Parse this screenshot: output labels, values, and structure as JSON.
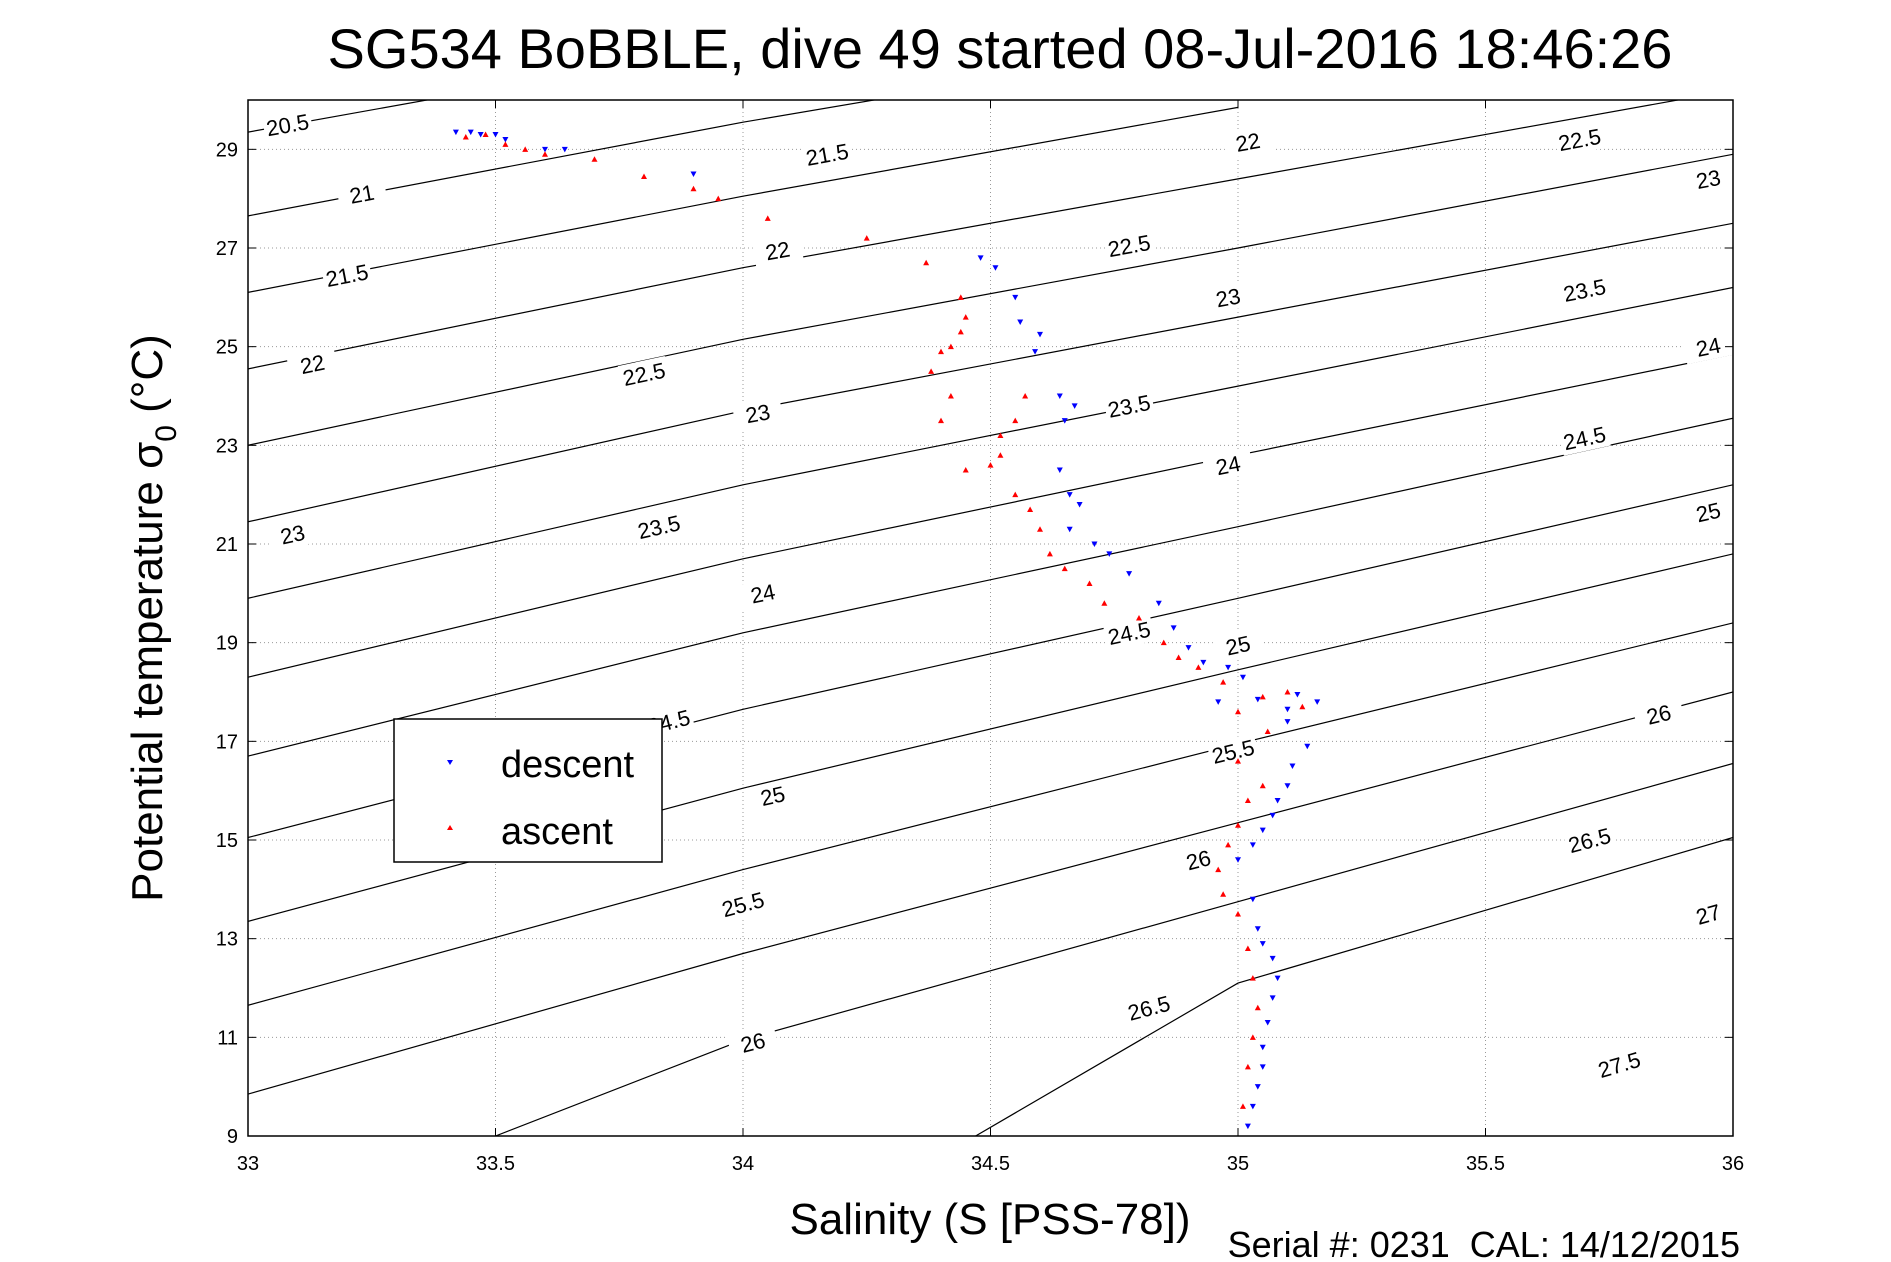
{
  "chart_data": {
    "type": "scatter",
    "title": "SG534 BoBBLE, dive 49 started 08-Jul-2016 18:46:26",
    "xlabel": "Salinity (S [PSS-78])",
    "ylabel_main": "Potential temperature σ",
    "ylabel_sub": "0",
    "ylabel_unit": " (°C)",
    "xlim": [
      33,
      36
    ],
    "ylim": [
      9,
      30
    ],
    "grid": true,
    "x_ticks": [
      33,
      33.5,
      34,
      34.5,
      35,
      35.5,
      36
    ],
    "x_tick_labels": [
      "33",
      "33.5",
      "34",
      "34.5",
      "35",
      "35.5",
      "36"
    ],
    "y_ticks": [
      9,
      11,
      13,
      15,
      17,
      19,
      21,
      23,
      25,
      27,
      29
    ],
    "y_tick_labels": [
      "9",
      "11",
      "13",
      "15",
      "17",
      "19",
      "21",
      "23",
      "25",
      "27",
      "29"
    ],
    "legend": {
      "placement": "left-middle",
      "entries": [
        {
          "name": "descent",
          "color": "#0000ff",
          "marker": "triangle-down"
        },
        {
          "name": "ascent",
          "color": "#ff0000",
          "marker": "triangle-up"
        }
      ]
    },
    "footer": "Serial #: 0231  CAL: 14/12/2015",
    "density_contours": [
      {
        "level": 20.5,
        "label": "20.5",
        "points": [
          [
            33.0,
            29.35
          ],
          [
            34.0,
            31.15
          ]
        ],
        "labels_at": [
          [
            33.08,
            29.5
          ]
        ]
      },
      {
        "level": 21,
        "label": "21",
        "points": [
          [
            33.0,
            27.65
          ],
          [
            34.0,
            29.55
          ],
          [
            35.0,
            31.25
          ]
        ],
        "labels_at": [
          [
            33.23,
            28.1
          ]
        ]
      },
      {
        "level": 21.5,
        "label": "21.5",
        "points": [
          [
            33.0,
            26.1
          ],
          [
            34.0,
            28.05
          ],
          [
            35.0,
            29.85
          ]
        ],
        "labels_at": [
          [
            33.2,
            26.45
          ],
          [
            34.17,
            28.9
          ]
        ]
      },
      {
        "level": 22,
        "label": "22",
        "points": [
          [
            33.0,
            24.55
          ],
          [
            34.0,
            26.6
          ],
          [
            35.0,
            28.4
          ],
          [
            36.0,
            30.2
          ]
        ],
        "labels_at": [
          [
            33.13,
            24.65
          ],
          [
            34.07,
            26.95
          ],
          [
            35.02,
            29.15
          ]
        ]
      },
      {
        "level": 22.5,
        "label": "22.5",
        "points": [
          [
            33.0,
            23.0
          ],
          [
            34.0,
            25.15
          ],
          [
            35.0,
            27.0
          ],
          [
            36.0,
            28.9
          ]
        ],
        "labels_at": [
          [
            33.8,
            24.45
          ],
          [
            34.78,
            27.05
          ],
          [
            35.69,
            29.2
          ]
        ]
      },
      {
        "level": 23,
        "label": "23",
        "points": [
          [
            33.0,
            21.45
          ],
          [
            34.0,
            23.7
          ],
          [
            35.0,
            25.6
          ],
          [
            36.0,
            27.5
          ]
        ],
        "labels_at": [
          [
            33.09,
            21.2
          ],
          [
            34.03,
            23.65
          ],
          [
            34.98,
            26.0
          ],
          [
            35.95,
            28.4
          ]
        ]
      },
      {
        "level": 23.5,
        "label": "23.5",
        "points": [
          [
            33.0,
            19.9
          ],
          [
            34.0,
            22.2
          ],
          [
            35.0,
            24.2
          ],
          [
            36.0,
            26.2
          ]
        ],
        "labels_at": [
          [
            33.83,
            21.35
          ],
          [
            34.78,
            23.8
          ],
          [
            35.7,
            26.15
          ]
        ]
      },
      {
        "level": 24,
        "label": "24",
        "points": [
          [
            33.0,
            18.3
          ],
          [
            34.0,
            20.7
          ],
          [
            35.0,
            22.8
          ],
          [
            36.0,
            24.85
          ]
        ],
        "labels_at": [
          [
            34.04,
            20.0
          ],
          [
            34.98,
            22.6
          ],
          [
            35.95,
            25.0
          ]
        ]
      },
      {
        "level": 24.5,
        "label": "24.5",
        "points": [
          [
            33.0,
            16.7
          ],
          [
            34.0,
            19.2
          ],
          [
            35.0,
            21.35
          ],
          [
            36.0,
            23.55
          ]
        ],
        "labels_at": [
          [
            33.85,
            17.4
          ],
          [
            34.78,
            19.2
          ],
          [
            35.7,
            23.15
          ]
        ]
      },
      {
        "level": 25,
        "label": "25",
        "points": [
          [
            33.0,
            15.05
          ],
          [
            34.0,
            17.65
          ],
          [
            35.0,
            19.9
          ],
          [
            36.0,
            22.2
          ]
        ],
        "labels_at": [
          [
            34.06,
            15.9
          ],
          [
            35.0,
            18.95
          ],
          [
            35.95,
            21.65
          ]
        ]
      },
      {
        "level": 25.5,
        "label": "25.5",
        "points": [
          [
            33.0,
            13.35
          ],
          [
            34.0,
            16.05
          ],
          [
            35.0,
            18.45
          ],
          [
            36.0,
            20.8
          ]
        ],
        "labels_at": [
          [
            34.0,
            13.7
          ],
          [
            34.99,
            16.8
          ]
        ]
      },
      {
        "level": 26,
        "label": "26",
        "points": [
          [
            33.0,
            11.65
          ],
          [
            34.0,
            14.4
          ],
          [
            35.0,
            16.95
          ],
          [
            36.0,
            19.4
          ]
        ],
        "labels_at": [
          [
            34.02,
            10.9
          ],
          [
            34.92,
            14.6
          ],
          [
            35.85,
            17.55
          ]
        ]
      },
      {
        "level": 26.5,
        "label": "26.5",
        "points": [
          [
            33.0,
            9.85
          ],
          [
            34.0,
            12.7
          ],
          [
            35.0,
            15.35
          ],
          [
            36.0,
            18.0
          ]
        ],
        "labels_at": [
          [
            34.82,
            11.6
          ],
          [
            35.71,
            15.0
          ]
        ]
      },
      {
        "level": 27,
        "label": "27",
        "points": [
          [
            33.5,
            9.0
          ],
          [
            34.0,
            10.95
          ],
          [
            35.0,
            13.75
          ],
          [
            36.0,
            16.55
          ]
        ],
        "labels_at": [
          [
            35.95,
            13.5
          ]
        ]
      },
      {
        "level": 27.5,
        "label": "27.5",
        "points": [
          [
            34.47,
            9.0
          ],
          [
            35.0,
            12.1
          ],
          [
            36.0,
            15.05
          ]
        ],
        "labels_at": [
          [
            35.77,
            10.45
          ]
        ]
      }
    ],
    "series": [
      {
        "name": "descent",
        "color": "#0000ff",
        "marker": "triangle-down",
        "x": [
          33.42,
          33.45,
          33.47,
          33.5,
          33.52,
          33.6,
          33.64,
          33.9,
          34.48,
          34.51,
          34.55,
          34.56,
          34.6,
          34.59,
          34.64,
          34.65,
          34.67,
          34.64,
          34.66,
          34.68,
          34.66,
          34.71,
          34.74,
          34.78,
          34.84,
          34.87,
          34.9,
          34.93,
          34.98,
          35.01,
          34.96,
          35.04,
          35.1,
          35.12,
          35.16,
          35.1,
          35.14,
          35.11,
          35.1,
          35.08,
          35.07,
          35.05,
          35.03,
          35.0,
          35.03,
          35.04,
          35.05,
          35.07,
          35.08,
          35.07,
          35.06,
          35.05,
          35.05,
          35.04,
          35.03,
          35.02
        ],
        "y": [
          29.35,
          29.35,
          29.3,
          29.3,
          29.2,
          29.0,
          29.0,
          28.5,
          26.8,
          26.6,
          26.0,
          25.5,
          25.25,
          24.9,
          24.0,
          23.5,
          23.8,
          22.5,
          22.0,
          21.8,
          21.3,
          21.0,
          20.8,
          20.4,
          19.8,
          19.3,
          18.9,
          18.6,
          18.5,
          18.3,
          17.8,
          17.85,
          17.65,
          17.95,
          17.8,
          17.4,
          16.9,
          16.5,
          16.1,
          15.8,
          15.5,
          15.2,
          14.9,
          14.6,
          13.8,
          13.2,
          12.9,
          12.6,
          12.2,
          11.8,
          11.3,
          10.8,
          10.4,
          10.0,
          9.6,
          9.2
        ]
      },
      {
        "name": "ascent",
        "color": "#ff0000",
        "marker": "triangle-up",
        "x": [
          33.44,
          33.48,
          33.52,
          33.56,
          33.6,
          33.7,
          33.8,
          33.9,
          33.95,
          34.05,
          34.25,
          34.37,
          34.44,
          34.45,
          34.44,
          34.42,
          34.4,
          34.38,
          34.42,
          34.4,
          34.45,
          34.52,
          34.55,
          34.57,
          34.52,
          34.5,
          34.55,
          34.58,
          34.6,
          34.62,
          34.65,
          34.7,
          34.73,
          34.8,
          34.85,
          34.88,
          34.92,
          34.97,
          35.0,
          35.05,
          35.1,
          35.13,
          35.06,
          35.0,
          35.05,
          35.02,
          35.0,
          34.98,
          34.96,
          34.97,
          35.0,
          35.02,
          35.03,
          35.04,
          35.03,
          35.02,
          35.01
        ],
        "y": [
          29.25,
          29.3,
          29.1,
          29.0,
          28.9,
          28.8,
          28.45,
          28.2,
          28.0,
          27.6,
          27.2,
          26.7,
          26.0,
          25.6,
          25.3,
          25.0,
          24.9,
          24.5,
          24.0,
          23.5,
          22.5,
          22.8,
          23.5,
          24.0,
          23.2,
          22.6,
          22.0,
          21.7,
          21.3,
          20.8,
          20.5,
          20.2,
          19.8,
          19.5,
          19.0,
          18.7,
          18.5,
          18.2,
          17.6,
          17.9,
          18.0,
          17.7,
          17.2,
          16.6,
          16.1,
          15.8,
          15.3,
          14.9,
          14.4,
          13.9,
          13.5,
          12.8,
          12.2,
          11.6,
          11.0,
          10.4,
          9.6
        ]
      }
    ]
  }
}
